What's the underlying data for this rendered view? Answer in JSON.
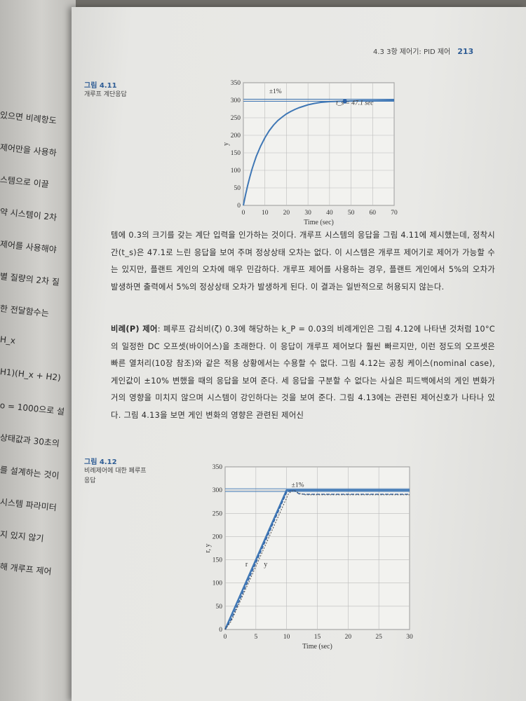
{
  "left_page": {
    "fragments": [
      "있으면 비례항도",
      "제어만을 사용하",
      "스템으로 이끌",
      "약 시스템이 2차",
      "제어를 사용해야",
      "별 질량의 2차 질",
      "한 전달함수는",
      "H_x",
      "H1)(H_x + H2)",
      "o = 1000으로 설",
      "상태값과 30초의",
      "를 설계하는 것이",
      "시스템 파라미터",
      "지 있지 않기",
      "해 개루프 제어"
    ]
  },
  "header": {
    "section": "4.3  3항 제어기: PID 제어",
    "page_number": "213"
  },
  "figure_411": {
    "label": "그림 4.11",
    "caption": "개루프 계단응답",
    "annotation_band": "±1%",
    "annotation_settle": "t_s = 47.1 sec",
    "xlabel": "Time (sec)",
    "ylabel": "y"
  },
  "figure_412": {
    "label": "그림 4.12",
    "caption": "비례제어에 대한 폐루프 응답",
    "annotation_band": "±1%",
    "label_r": "r",
    "label_y": "y",
    "xlabel": "Time (sec)",
    "ylabel": "r, y"
  },
  "paragraph1": "템에 0.3의 크기를 갖는 계단 입력을 인가하는 것이다. 개루프 시스템의 응답을 그림 4.11에 제시했는데, 정착시간(t_s)은 47.1로 느린 응답을 보여 주며 정상상태 오차는 없다. 이 시스템은 개루프 제어기로 제어가 가능할 수는 있지만, 플랜트 게인의 오차에 매우 민감하다. 개루프 제어를 사용하는 경우, 플랜트 게인에서 5%의 오차가 발생하면 출력에서 5%의 정상상태 오차가 발생하게 된다. 이 결과는 일반적으로 허용되지 않는다.",
  "paragraph2": {
    "term": "비례(P) 제어",
    "text": ": 폐루프 감쇠비(ζ) 0.3에 해당하는 k_P = 0.03의 비례게인은 그림 4.12에 나타낸 것처럼 10°C의 일정한 DC 오프셋(바이어스)을 초래한다. 이 응답이 개루프 제어보다 훨씬 빠르지만, 이런 정도의 오프셋은 빠른 열처리(10장 참조)와 같은 적용 상황에서는 수용할 수 없다. 그림 4.12는 공칭 케이스(nominal case), 게인값이 ±10% 변했을 때의 응답을 보여 준다. 세 응답을 구분할 수 없다는 사실은 피드백에서의 게인 변화가 거의 영향을 미치지 않으며 시스템이 강인하다는 것을 보여 준다. 그림 4.13에는 관련된 제어신호가 나타나 있다. 그림 4.13을 보면 게인 변화의 영향은 관련된 제어신"
  },
  "chart_data": [
    {
      "type": "line",
      "title": "",
      "xlabel": "Time (sec)",
      "ylabel": "y",
      "xlim": [
        0,
        70
      ],
      "ylim": [
        0,
        350
      ],
      "xticks": [
        0,
        10,
        20,
        30,
        40,
        50,
        60,
        70
      ],
      "yticks": [
        0,
        50,
        100,
        150,
        200,
        250,
        300,
        350
      ],
      "grid": true,
      "series": [
        {
          "x": [
            0,
            1,
            2,
            3,
            4,
            5,
            6,
            8,
            10,
            12,
            14,
            16,
            18,
            20,
            22,
            24,
            26,
            28,
            30,
            33,
            36,
            40,
            45,
            47.1,
            50,
            55,
            60,
            70
          ],
          "values": [
            0,
            30,
            57,
            81,
            103,
            122,
            140,
            169,
            193,
            213,
            229,
            242,
            252,
            261,
            268,
            274,
            279,
            283,
            287,
            291,
            294,
            296,
            297,
            297,
            298,
            299,
            299,
            300
          ]
        }
      ],
      "band_lines": [
        297,
        303
      ],
      "settling_point": {
        "x": 47.1,
        "y": 297
      }
    },
    {
      "type": "line",
      "title": "",
      "xlabel": "Time (sec)",
      "ylabel": "r, y",
      "xlim": [
        0,
        30
      ],
      "ylim": [
        0,
        350
      ],
      "xticks": [
        0,
        5,
        10,
        15,
        20,
        25,
        30
      ],
      "yticks": [
        0,
        50,
        100,
        150,
        200,
        250,
        300,
        350
      ],
      "grid": true,
      "series": [
        {
          "x": [
            0,
            10,
            30
          ],
          "values": [
            0,
            300,
            300
          ]
        },
        {
          "x": [
            0,
            1,
            10,
            10.5,
            11,
            11.5,
            12,
            13,
            14,
            16,
            20,
            30
          ],
          "values": [
            0,
            22,
            295,
            298,
            300,
            297,
            292,
            291,
            291,
            291,
            291,
            291
          ]
        },
        {
          "x": [
            0,
            1,
            10.3,
            10.8,
            11.3,
            12,
            13,
            14,
            16,
            20,
            30
          ],
          "values": [
            0,
            18,
            292,
            298,
            299,
            293,
            290,
            290,
            290,
            290,
            290
          ]
        }
      ],
      "band_lines": [
        297,
        303
      ]
    }
  ]
}
